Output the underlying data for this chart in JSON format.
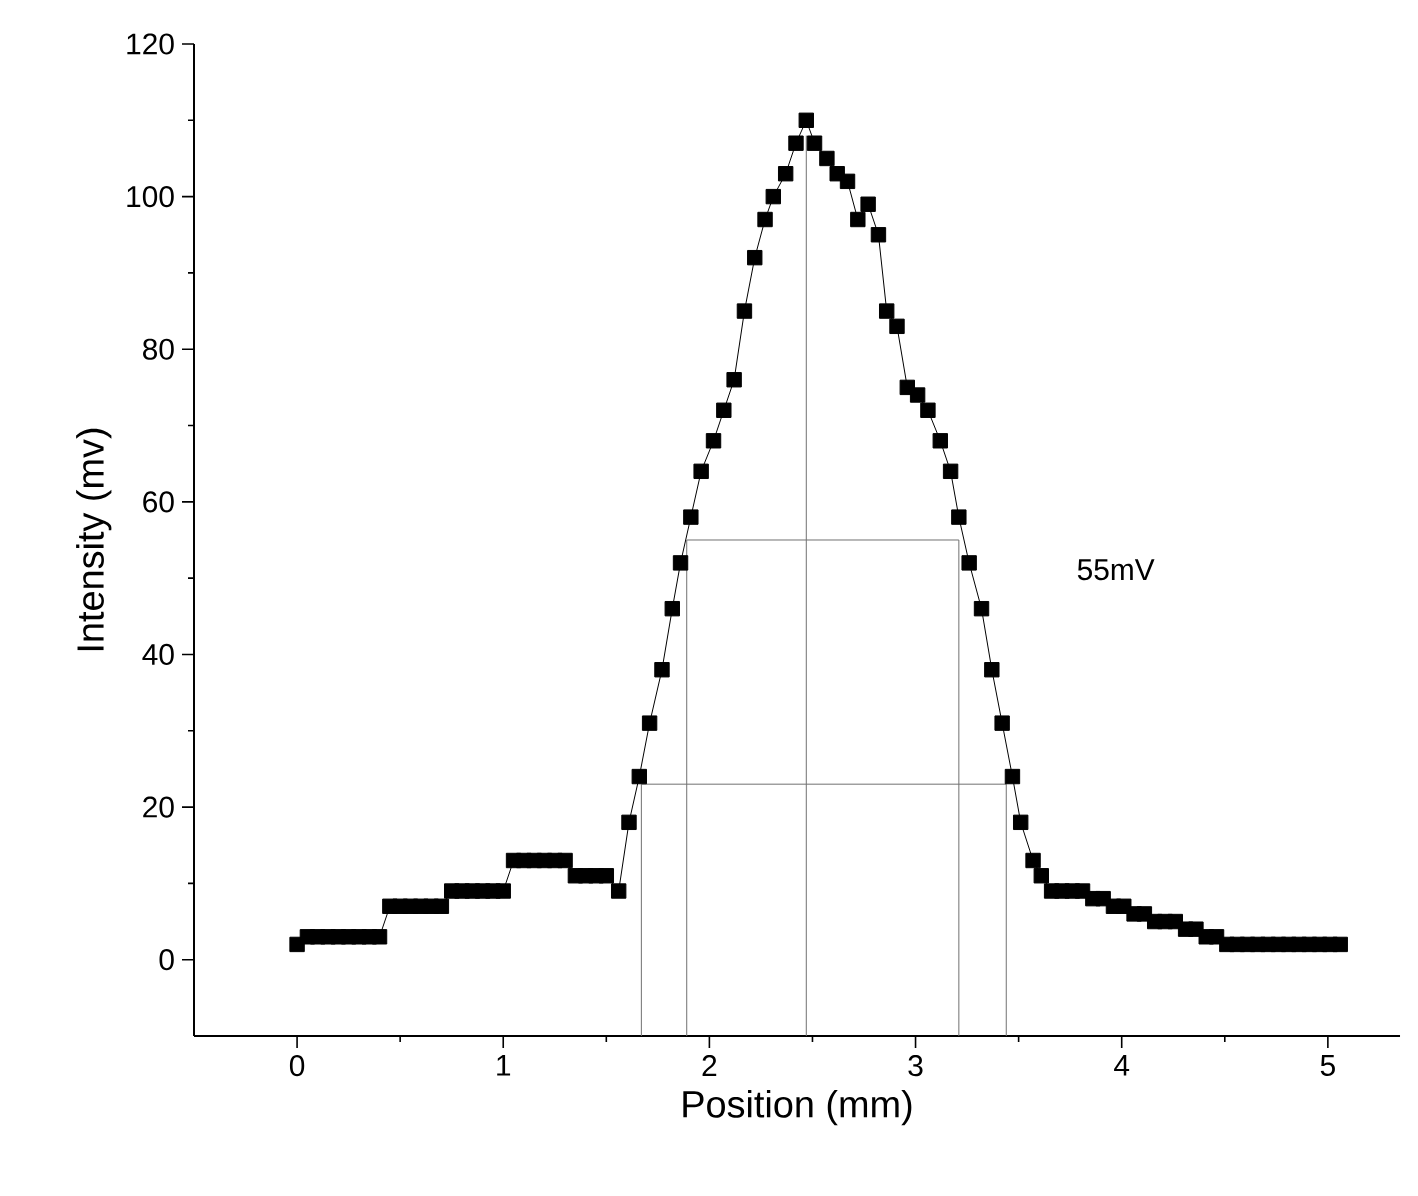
{
  "chart_data": {
    "type": "line",
    "xlabel": "Position (mm)",
    "ylabel": "Intensity (mv)",
    "xlim": [
      -0.5,
      5.35
    ],
    "ylim": [
      -10,
      120
    ],
    "xticks": [
      0,
      1,
      2,
      3,
      4,
      5
    ],
    "yticks": [
      0,
      20,
      40,
      60,
      80,
      100,
      120
    ],
    "series": [
      {
        "marker": "square",
        "line_style": "solid",
        "color": "#000000",
        "x": [
          0,
          0.05,
          0.1,
          0.15,
          0.2,
          0.25,
          0.3,
          0.35,
          0.4,
          0.45,
          0.5,
          0.55,
          0.6,
          0.65,
          0.7,
          0.75,
          0.8,
          0.85,
          0.9,
          0.95,
          1.0,
          1.05,
          1.1,
          1.15,
          1.2,
          1.25,
          1.3,
          1.35,
          1.4,
          1.45,
          1.5,
          1.56,
          1.61,
          1.66,
          1.71,
          1.77,
          1.82,
          1.86,
          1.91,
          1.96,
          2.02,
          2.07,
          2.12,
          2.17,
          2.22,
          2.27,
          2.31,
          2.37,
          2.42,
          2.47,
          2.51,
          2.57,
          2.62,
          2.67,
          2.72,
          2.77,
          2.82,
          2.86,
          2.91,
          2.96,
          3.01,
          3.06,
          3.12,
          3.17,
          3.21,
          3.26,
          3.32,
          3.37,
          3.42,
          3.47,
          3.51,
          3.57,
          3.61,
          3.66,
          3.71,
          3.76,
          3.81,
          3.86,
          3.91,
          3.96,
          4.01,
          4.06,
          4.11,
          4.16,
          4.21,
          4.26,
          4.31,
          4.36,
          4.41,
          4.46,
          4.51,
          4.56,
          4.61,
          4.66,
          4.71,
          4.76,
          4.81,
          4.86,
          4.91,
          4.96,
          5.01,
          5.06
        ],
        "values": [
          2,
          3,
          3,
          3,
          3,
          3,
          3,
          3,
          3,
          7,
          7,
          7,
          7,
          7,
          7,
          9,
          9,
          9,
          9,
          9,
          9,
          13,
          13,
          13,
          13,
          13,
          13,
          11,
          11,
          11,
          11,
          9,
          18,
          24,
          31,
          38,
          46,
          52,
          58,
          64,
          68,
          72,
          76,
          85,
          92,
          97,
          100,
          103,
          107,
          110,
          107,
          105,
          103,
          102,
          97,
          99,
          95,
          85,
          83,
          75,
          74,
          72,
          68,
          64,
          58,
          52,
          46,
          38,
          31,
          24,
          18,
          13,
          11,
          9,
          9,
          9,
          9,
          8,
          8,
          7,
          7,
          6,
          6,
          5,
          5,
          5,
          4,
          4,
          3,
          3,
          2,
          2,
          2,
          2,
          2,
          2,
          2,
          2,
          2,
          2,
          2,
          2
        ]
      },
      {
        "marker": "none",
        "line_style": "solid",
        "color": "#707070",
        "x": [
          1.89,
          3.21
        ],
        "values": [
          55,
          55
        ]
      },
      {
        "marker": "none",
        "line_style": "solid",
        "color": "#707070",
        "x": [
          1.67,
          3.44
        ],
        "values": [
          23,
          23
        ]
      },
      {
        "marker": "none",
        "line_style": "solid",
        "color": "#707070",
        "x": [
          1.67,
          1.67
        ],
        "values": [
          -10,
          23
        ]
      },
      {
        "marker": "none",
        "line_style": "solid",
        "color": "#707070",
        "x": [
          1.89,
          1.89
        ],
        "values": [
          -10,
          55
        ]
      },
      {
        "marker": "none",
        "line_style": "solid",
        "color": "#707070",
        "x": [
          2.47,
          2.47
        ],
        "values": [
          -10,
          108
        ]
      },
      {
        "marker": "none",
        "line_style": "solid",
        "color": "#707070",
        "x": [
          3.21,
          3.21
        ],
        "values": [
          -10,
          55
        ]
      },
      {
        "marker": "none",
        "line_style": "solid",
        "color": "#707070",
        "x": [
          3.44,
          3.44
        ],
        "values": [
          -10,
          23
        ]
      }
    ],
    "annotations": [
      "55mV"
    ]
  }
}
